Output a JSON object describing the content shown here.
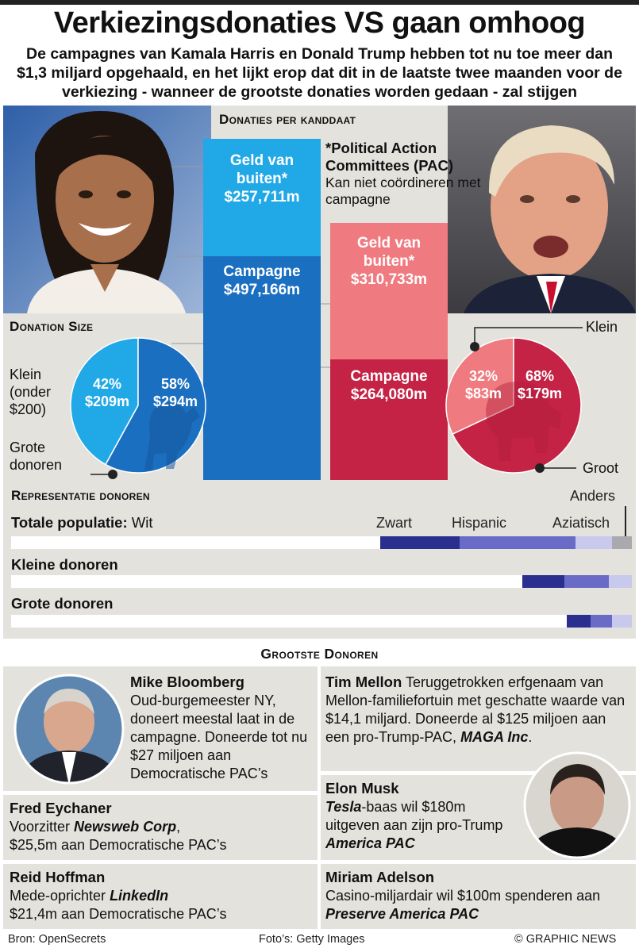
{
  "title": "Verkiezingsdonaties VS gaan omhoog",
  "subtitle": "De campagnes van Kamala Harris en Donald Trump hebben tot nu toe meer dan $1,3 miljard opgehaald, en het lijkt erop dat dit in de laatste twee maanden voor de verkiezing - wanneer de grootste donaties worden gedaan - zal stijgen",
  "colors": {
    "dem_dark": "#1b6fc0",
    "dem_light": "#21a8e6",
    "rep_dark": "#c42345",
    "rep_light": "#ef7a80",
    "eth_black": "#2a2f8f",
    "eth_hispanic": "#6a6bc6",
    "eth_asian": "#c8c9ec",
    "eth_other": "#a9a9ae"
  },
  "chart_data": [
    {
      "type": "bar",
      "title": "Donaties per kanddaat",
      "categories": [
        "Harris",
        "Trump"
      ],
      "series": [
        {
          "name": "Campagne",
          "values": [
            497.166,
            264.08
          ],
          "labels": [
            "Campagne\n$497,166m",
            "Campagne\n$264,080m"
          ]
        },
        {
          "name": "Geld van buiten*",
          "values": [
            257.711,
            310.733
          ],
          "labels": [
            "Geld van\nbuiten*\n$257,711m",
            "Geld van\nbuiten*\n$310,733m"
          ]
        }
      ],
      "note": {
        "heading": "*Political Action Committees (PAC)",
        "text": "Kan niet coördineren met campagne"
      }
    },
    {
      "type": "pie",
      "title": "Donation Size",
      "candidate": "Harris",
      "slices": [
        {
          "name": "Klein (onder $200)",
          "percent": 42,
          "value": "$209m"
        },
        {
          "name": "Grote donoren",
          "percent": 58,
          "value": "$294m"
        }
      ],
      "label_small": "Klein\n(onder\n$200)",
      "label_large": "Grote\ndonoren"
    },
    {
      "type": "pie",
      "candidate": "Trump",
      "slices": [
        {
          "name": "Klein",
          "percent": 32,
          "value": "$83m"
        },
        {
          "name": "Groot",
          "percent": 68,
          "value": "$179m"
        }
      ],
      "label_small": "Klein",
      "label_large": "Groot"
    },
    {
      "type": "bar",
      "title": "Representatie donoren",
      "orientation": "horizontal-stacked",
      "categories": [
        "Wit",
        "Zwart",
        "Hispanic",
        "Aziatisch",
        "Anders"
      ],
      "rows": [
        {
          "name": "Totale populatie:",
          "values": [
            59.5,
            12.7,
            18.7,
            5.9,
            3.2
          ]
        },
        {
          "name": "Kleine donoren",
          "values": [
            82.3,
            6.8,
            7.2,
            3.7,
            0
          ]
        },
        {
          "name": "Grote donoren",
          "values": [
            89.5,
            3.9,
            3.4,
            3.2,
            0
          ]
        }
      ]
    }
  ],
  "donors_head": "Grootste Donoren",
  "donors": {
    "bloomberg": {
      "name": "Mike Bloomberg",
      "text": "Oud-burgemeester NY, doneert meestal laat in de campagne. Doneerde tot nu $27 miljoen aan Democratische PAC’s"
    },
    "eychaner": {
      "name": "Fred Eychaner",
      "pre": "Voorzitter ",
      "em": "Newsweb Corp",
      "post": ",",
      "text2": "$25,5m aan Democratische PAC’s"
    },
    "hoffman": {
      "name": "Reid Hoffman",
      "pre": "Mede-oprichter ",
      "em": "LinkedIn",
      "text2": "$21,4m aan Democratische PAC’s"
    },
    "mellon": {
      "name": "Tim Mellon",
      "text": " Teruggetrokken erfgenaam van Mellon-familiefortuin met geschatte waarde van $14,1 miljard. Doneerde al $125 miljoen aan een pro-Trump-PAC, ",
      "em": "MAGA Inc",
      "post": "."
    },
    "musk": {
      "name": "Elon Musk",
      "em": "Tesla",
      "text": "-baas wil $180m uitgeven aan zijn pro-Trump ",
      "em2": "America PAC"
    },
    "adelson": {
      "name": "Miriam Adelson",
      "text": "Casino-miljardair wil $100m spenderen aan ",
      "em": "Preserve America PAC"
    }
  },
  "footer": {
    "source": "Bron: OpenSecrets",
    "photos": "Foto’s: Getty Images",
    "credit": "© GRAPHIC NEWS"
  }
}
